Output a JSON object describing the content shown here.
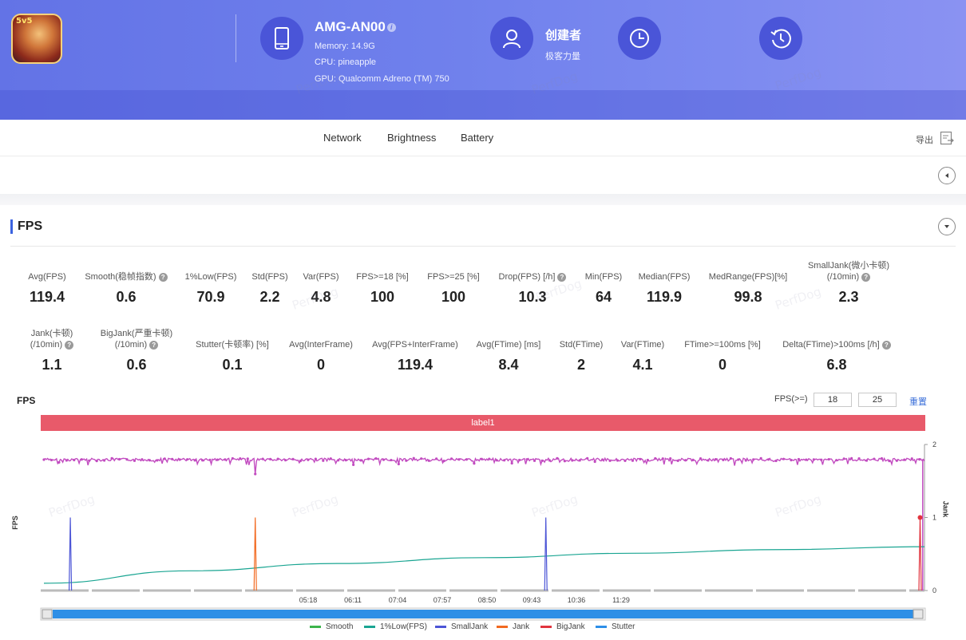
{
  "header": {
    "device_name": "AMG-AN00",
    "memory": "Memory: 14.9G",
    "cpu": "CPU: pineapple",
    "gpu": "GPU: Qualcomm Adreno (TM) 750",
    "creator_label": "创建者",
    "creator_sub": "极客力量",
    "app_badge": "5v5"
  },
  "tabs": [
    "Network",
    "Brightness",
    "Battery"
  ],
  "export_label": "导出",
  "section_title": "FPS",
  "metrics_row1": [
    {
      "label": "Avg(FPS)",
      "value": "119.4",
      "help": false
    },
    {
      "label": "Smooth(稳帧指数)",
      "value": "0.6",
      "help": true
    },
    {
      "label": "1%Low(FPS)",
      "value": "70.9",
      "help": false
    },
    {
      "label": "Std(FPS)",
      "value": "2.2",
      "help": false
    },
    {
      "label": "Var(FPS)",
      "value": "4.8",
      "help": false
    },
    {
      "label": "FPS>=18 [%]",
      "value": "100",
      "help": false
    },
    {
      "label": "FPS>=25 [%]",
      "value": "100",
      "help": false
    },
    {
      "label": "Drop(FPS) [/h]",
      "value": "10.3",
      "help": true
    },
    {
      "label": "Min(FPS)",
      "value": "64",
      "help": false
    },
    {
      "label": "Median(FPS)",
      "value": "119.9",
      "help": false
    },
    {
      "label": "MedRange(FPS)[%]",
      "value": "99.8",
      "help": false
    },
    {
      "label": "SmallJank(微小卡顿)",
      "label2": "(/10min)",
      "value": "2.3",
      "help": true
    }
  ],
  "metrics_row2": [
    {
      "label": "Jank(卡顿)",
      "label2": "(/10min)",
      "value": "1.1",
      "help": true
    },
    {
      "label": "BigJank(严重卡顿)",
      "label2": "(/10min)",
      "value": "0.6",
      "help": true
    },
    {
      "label": "Stutter(卡顿率) [%]",
      "value": "0.1",
      "help": false
    },
    {
      "label": "Avg(InterFrame)",
      "value": "0",
      "help": false
    },
    {
      "label": "Avg(FPS+InterFrame)",
      "value": "119.4",
      "help": false
    },
    {
      "label": "Avg(FTime) [ms]",
      "value": "8.4",
      "help": false
    },
    {
      "label": "Std(FTime)",
      "value": "2",
      "help": false
    },
    {
      "label": "Var(FTime)",
      "value": "4.1",
      "help": false
    },
    {
      "label": "FTime>=100ms [%]",
      "value": "0",
      "help": false
    },
    {
      "label": "Delta(FTime)>100ms [/h]",
      "value": "6.8",
      "help": true
    }
  ],
  "chart_header": {
    "title": "FPS",
    "threshold_label": "FPS(>=)",
    "threshold1": "18",
    "threshold2": "25",
    "reset_label": "重置",
    "label_bar": "label1",
    "ylabel_left": "FPS",
    "ylabel_right": "Jank"
  },
  "watermark": "PerfDog",
  "colors": {
    "fps": "#c24cc0",
    "smooth": "#3cb44b",
    "low1": "#1aa592",
    "smalljank": "#4c55d6",
    "jank": "#f26a21",
    "bigjank": "#e1343e",
    "stutter": "#2d8fe8",
    "label_bar": "#e85a6a",
    "accent": "#3b63e0"
  },
  "chart_data": {
    "type": "line",
    "x_tick_labels": [
      "05:18",
      "06:11",
      "07:04",
      "07:57",
      "08:50",
      "09:43",
      "10:36",
      "11:29"
    ],
    "y_right_ticks": [
      "0",
      "1",
      "2"
    ],
    "y_right_range": [
      0,
      2
    ],
    "series": [
      {
        "name": "FPS",
        "approx_value": 119.4,
        "dips": [
          {
            "t": 0.24,
            "v": 0.7
          },
          {
            "t": 0.99,
            "v": 0.93
          }
        ]
      },
      {
        "name": "1%Low(FPS)",
        "values_frac": [
          0.1,
          0.27,
          0.37,
          0.45,
          0.51,
          0.56,
          0.6
        ]
      },
      {
        "name": "SmallJank",
        "events_t": [
          0.03,
          0.57
        ]
      },
      {
        "name": "Jank",
        "events_t": [
          0.24
        ]
      },
      {
        "name": "BigJank",
        "events_t": [
          0.995
        ]
      }
    ],
    "legend": [
      "Smooth",
      "1%Low(FPS)",
      "SmallJank",
      "Jank",
      "BigJank",
      "Stutter"
    ],
    "grid": false
  }
}
